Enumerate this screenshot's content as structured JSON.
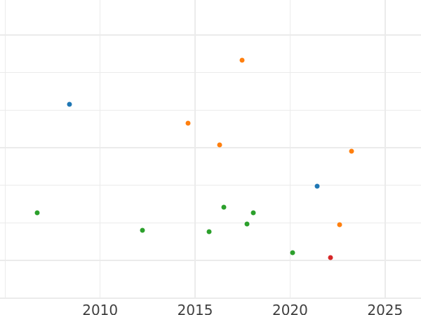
{
  "chart_data": {
    "type": "scatter",
    "title": "",
    "xlabel": "",
    "ylabel": "",
    "grid": true,
    "legend": false,
    "marker_diameter_px": 7,
    "x_axis": {
      "tick_labels": [
        "2010",
        "2015",
        "2020",
        "2025"
      ],
      "tick_values": [
        2010,
        2015,
        2020,
        2025
      ],
      "gridline_values": [
        2005,
        2010,
        2015,
        2020,
        2025
      ],
      "range": [
        2004.73,
        2026.89
      ]
    },
    "y_axis": {
      "tick_labels": [],
      "gridline_values": [
        0,
        1,
        2,
        3,
        4,
        5,
        6,
        7
      ],
      "range": [
        -0.45,
        7.93
      ]
    },
    "series": [
      {
        "name": "blue",
        "color": "#1f77b4",
        "points": [
          {
            "x": 2008.38,
            "y": 5.16
          },
          {
            "x": 2021.43,
            "y": 2.98
          }
        ]
      },
      {
        "name": "orange",
        "color": "#ff7f0e",
        "points": [
          {
            "x": 2014.62,
            "y": 4.65
          },
          {
            "x": 2016.3,
            "y": 4.08
          },
          {
            "x": 2017.47,
            "y": 6.33
          },
          {
            "x": 2022.62,
            "y": 1.95
          },
          {
            "x": 2023.25,
            "y": 3.91
          }
        ]
      },
      {
        "name": "green",
        "color": "#2ca02c",
        "points": [
          {
            "x": 2006.68,
            "y": 2.27
          },
          {
            "x": 2012.24,
            "y": 1.81
          },
          {
            "x": 2015.74,
            "y": 1.76
          },
          {
            "x": 2016.51,
            "y": 2.42
          },
          {
            "x": 2017.72,
            "y": 1.97
          },
          {
            "x": 2018.06,
            "y": 2.26
          },
          {
            "x": 2020.12,
            "y": 1.2
          }
        ]
      },
      {
        "name": "red",
        "color": "#d62728",
        "points": [
          {
            "x": 2022.13,
            "y": 1.07
          }
        ]
      }
    ]
  },
  "colors": {
    "background": "#ffffff",
    "gridline": "#ebebeb",
    "tick_label": "#404040"
  }
}
